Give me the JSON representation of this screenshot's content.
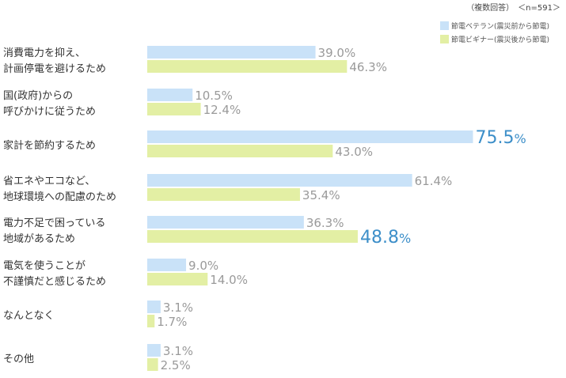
{
  "note": "（複数回答）　＜n=591＞",
  "colors": {
    "veteran": "#c9e2f8",
    "beginner": "#e3efa4",
    "value_text": "#9a9a9a",
    "highlight_text": "#3d8fc9"
  },
  "chart_data": {
    "type": "bar",
    "orientation": "horizontal",
    "categories": [
      [
        "消費電力を抑え、",
        "計画停電を避けるため"
      ],
      [
        "国(政府)からの",
        "呼びかけに従うため"
      ],
      [
        "家計を節約するため"
      ],
      [
        "省エネやエコなど、",
        "地球環境への配慮のため"
      ],
      [
        "電力不足で困っている",
        "地域があるため"
      ],
      [
        "電気を使うことが",
        "不謹慎だと感じるため"
      ],
      [
        "なんとなく"
      ],
      [
        "その他"
      ]
    ],
    "series": [
      {
        "name": "節電ベテラン(震災前から節電)",
        "values": [
          39.0,
          10.5,
          75.5,
          61.4,
          36.3,
          9.0,
          3.1,
          3.1
        ]
      },
      {
        "name": "節電ビギナー(震災後から節電)",
        "values": [
          46.3,
          12.4,
          43.0,
          35.4,
          48.8,
          14.0,
          1.7,
          2.5
        ]
      }
    ],
    "value_suffix": "%",
    "highlights": [
      {
        "series": 0,
        "index": 2
      },
      {
        "series": 1,
        "index": 4
      }
    ],
    "xlim": [
      0,
      100
    ],
    "grid": false,
    "legend_position": "top-right"
  }
}
